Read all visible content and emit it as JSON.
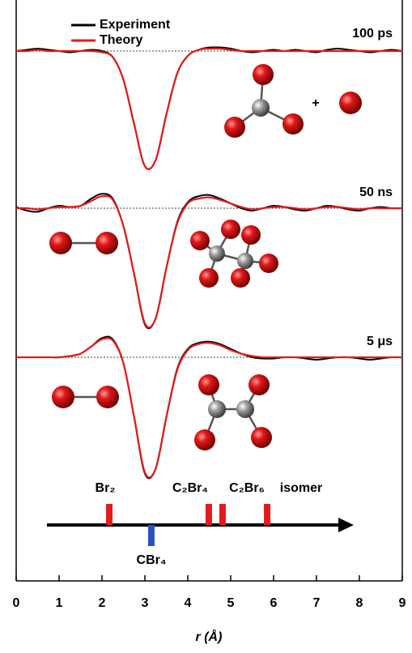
{
  "chart_data": {
    "type": "line",
    "xlabel": "r (Å)",
    "xlim": [
      0,
      9
    ],
    "xticks": [
      0,
      1,
      2,
      3,
      4,
      5,
      6,
      7,
      8,
      9
    ],
    "series": [
      {
        "name": "Experiment",
        "color": "#000000"
      },
      {
        "name": "Theory",
        "color": "#e41a1c"
      }
    ],
    "x": [
      0,
      0.25,
      0.5,
      0.75,
      1,
      1.25,
      1.5,
      1.75,
      2,
      2.25,
      2.5,
      2.75,
      3,
      3.25,
      3.5,
      3.75,
      4,
      4.25,
      4.5,
      4.75,
      5,
      5.25,
      5.5,
      5.75,
      6,
      6.25,
      6.5,
      6.75,
      7,
      7.25,
      7.5,
      7.75,
      8,
      8.25,
      8.5,
      8.75,
      9
    ],
    "panels": [
      {
        "label": "100 ps",
        "values": [
          [
            0,
            0.01,
            0.02,
            0.01,
            0,
            -0.01,
            0,
            0.01,
            0,
            -0.05,
            -0.24,
            -0.61,
            -0.96,
            -0.91,
            -0.53,
            -0.19,
            -0.04,
            0.01,
            0.03,
            0.03,
            0.02,
            0,
            -0.01,
            0,
            0.01,
            0,
            0.01,
            0,
            -0.01,
            0.01,
            0.02,
            0.01,
            0,
            -0.01,
            0,
            0.01,
            0
          ],
          [
            0,
            0,
            0.01,
            0,
            0,
            0,
            0,
            0,
            -0.01,
            -0.05,
            -0.24,
            -0.61,
            -0.96,
            -0.91,
            -0.53,
            -0.19,
            -0.04,
            0.01,
            0.02,
            0.02,
            0.01,
            0,
            0,
            0,
            0,
            0,
            0,
            0,
            0,
            0,
            0,
            0,
            0,
            0,
            0,
            0,
            0
          ]
        ]
      },
      {
        "label": "50 ns",
        "values": [
          [
            0.01,
            -0.02,
            -0.03,
            0,
            0.02,
            0.01,
            0.02,
            0.08,
            0.12,
            0.08,
            -0.15,
            -0.55,
            -0.97,
            -0.92,
            -0.5,
            -0.12,
            0.05,
            0.1,
            0.11,
            0.08,
            0.04,
            0,
            -0.02,
            0,
            0.02,
            0.01,
            -0.01,
            -0.02,
            0,
            0.02,
            0.01,
            -0.01,
            -0.02,
            0,
            0.01,
            0,
            0
          ],
          [
            0,
            0,
            -0.01,
            0,
            0.01,
            0.01,
            0.02,
            0.06,
            0.1,
            0.07,
            -0.15,
            -0.55,
            -0.96,
            -0.92,
            -0.5,
            -0.13,
            0.04,
            0.08,
            0.09,
            0.07,
            0.04,
            0.01,
            -0.01,
            0,
            0.01,
            0.01,
            0,
            -0.01,
            0,
            0.01,
            0.01,
            0,
            -0.01,
            0,
            0,
            0,
            0
          ]
        ]
      },
      {
        "label": "5 μs",
        "values": [
          [
            0,
            0,
            0,
            0,
            0,
            0.01,
            0.03,
            0.09,
            0.16,
            0.15,
            -0.05,
            -0.5,
            -0.97,
            -0.93,
            -0.5,
            -0.1,
            0.07,
            0.12,
            0.13,
            0.11,
            0.07,
            0.03,
            0,
            -0.01,
            -0.01,
            0,
            0,
            -0.01,
            -0.02,
            -0.01,
            0,
            0,
            -0.01,
            -0.02,
            -0.01,
            0,
            0
          ],
          [
            0,
            0,
            0,
            0,
            0,
            0.01,
            0.03,
            0.09,
            0.15,
            0.14,
            -0.05,
            -0.5,
            -0.96,
            -0.93,
            -0.5,
            -0.11,
            0.06,
            0.11,
            0.12,
            0.1,
            0.06,
            0.03,
            0.01,
            0,
            0,
            0,
            0,
            0,
            0,
            0,
            0,
            0,
            0,
            0,
            0,
            0,
            0
          ]
        ]
      }
    ],
    "markers": [
      {
        "label": "Br₂",
        "x": 2.17,
        "color": "#e41a1c",
        "side": "above"
      },
      {
        "label": "CBr₄",
        "x": 3.15,
        "color": "#2b4fc4",
        "side": "below"
      },
      {
        "label": "C₂Br₄",
        "x": 4.49,
        "color": "#e41a1c",
        "side": "above"
      },
      {
        "label": "C₂Br₆",
        "x": 4.81,
        "color": "#e41a1c",
        "side": "above"
      },
      {
        "label": "isomer",
        "x": 5.85,
        "color": "#e41a1c",
        "side": "above"
      }
    ]
  }
}
